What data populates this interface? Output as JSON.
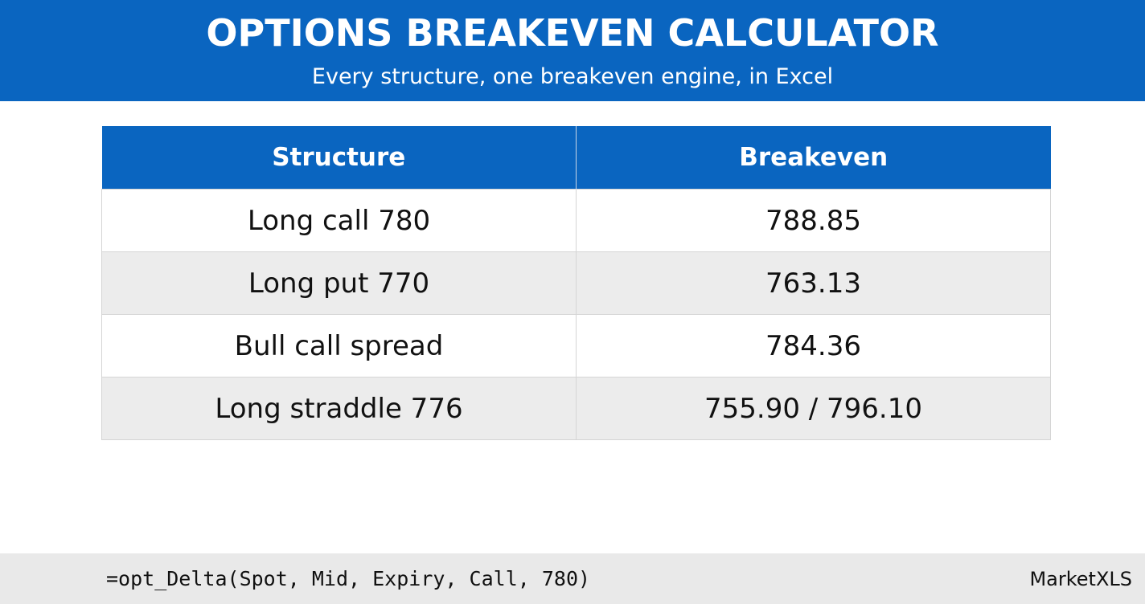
{
  "header": {
    "title": "OPTIONS BREAKEVEN CALCULATOR",
    "subtitle": "Every structure, one breakeven engine, in Excel"
  },
  "table": {
    "columns": [
      "Structure",
      "Breakeven"
    ],
    "rows": [
      [
        "Long call 780",
        "788.85"
      ],
      [
        "Long put 770",
        "763.13"
      ],
      [
        "Bull call spread",
        "784.36"
      ],
      [
        "Long straddle 776",
        "755.90 / 796.10"
      ]
    ]
  },
  "footer": {
    "formula": "=opt_Delta(Spot, Mid, Expiry, Call, 780)",
    "brand": "MarketXLS"
  }
}
